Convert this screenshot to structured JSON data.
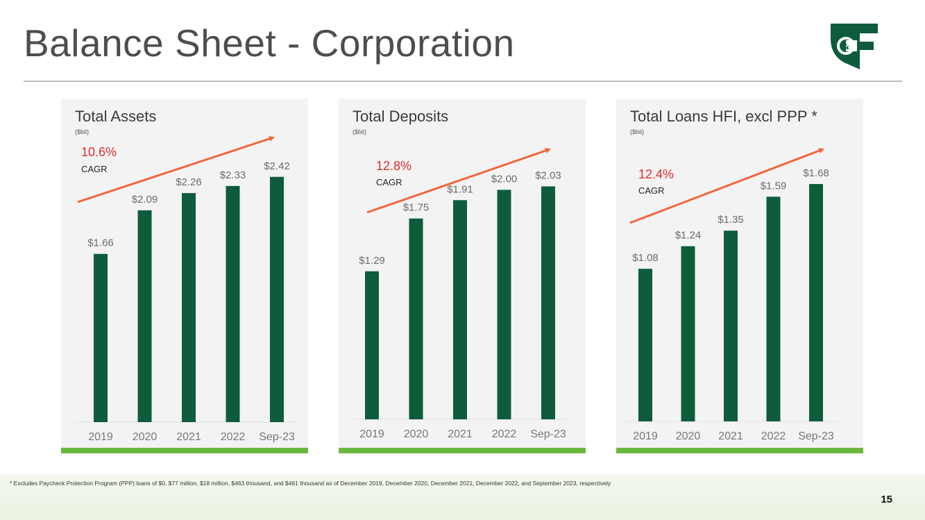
{
  "title": "Balance Sheet - Corporation",
  "colors": {
    "bar": "#0e5c3c",
    "accent_bar": "#6bb840",
    "arrow": "#f2643a",
    "cagr": "#e02a2a",
    "logo": "#0e5c3c"
  },
  "logo": {
    "text": "C&F",
    "icon": "cf-logo-icon"
  },
  "chart_data": [
    {
      "type": "bar",
      "title": "Total Assets",
      "unit": "($bil)",
      "categories": [
        "2019",
        "2020",
        "2021",
        "2022",
        "Sep-23"
      ],
      "values": [
        1.66,
        2.09,
        2.26,
        2.33,
        2.42
      ],
      "labels": [
        "$1.66",
        "$2.09",
        "$2.26",
        "$2.33",
        "$2.42"
      ],
      "ylim": [
        0,
        2.85
      ],
      "cagr": "10.6%",
      "cagr_label": "CAGR"
    },
    {
      "type": "bar",
      "title": "Total Deposits",
      "unit": "($bil)",
      "categories": [
        "2019",
        "2020",
        "2021",
        "2022",
        "Sep-23"
      ],
      "values": [
        1.29,
        1.75,
        1.91,
        2.0,
        2.03
      ],
      "labels": [
        "$1.29",
        "$1.75",
        "$1.91",
        "$2.00",
        "$2.03"
      ],
      "ylim": [
        0,
        2.42
      ],
      "cagr": "12.8%",
      "cagr_label": "CAGR"
    },
    {
      "type": "bar",
      "title": "Total Loans HFI, excl PPP *",
      "unit": "($bil)",
      "categories": [
        "2019",
        "2020",
        "2021",
        "2022",
        "Sep-23"
      ],
      "values": [
        1.08,
        1.24,
        1.35,
        1.59,
        1.68
      ],
      "labels": [
        "$1.08",
        "$1.24",
        "$1.35",
        "$1.59",
        "$1.68"
      ],
      "ylim": [
        0,
        1.98
      ],
      "cagr": "12.4%",
      "cagr_label": "CAGR"
    }
  ],
  "footnote": "* Excludes Paycheck Protection Program (PPP) loans of $0, $77 million, $18 million, $463 thousand, and $461 thousand as of December 2019, December 2020, December 2021, December 2022, and September 2023, respectively",
  "page_number": "15"
}
